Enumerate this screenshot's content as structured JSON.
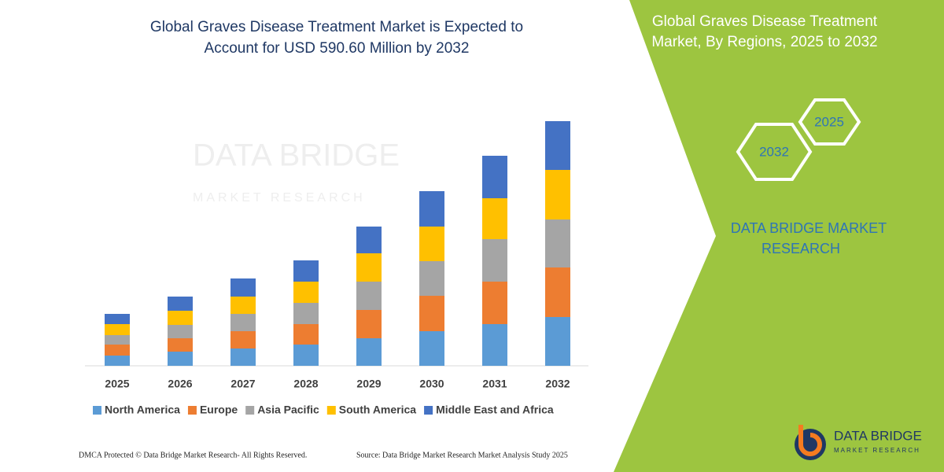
{
  "chart_data": {
    "type": "stacked_bar",
    "title_lines": [
      "Global Graves Disease Treatment Market is Expected to",
      "Account for USD 590.60 Million by 2032"
    ],
    "side_title_lines": [
      "Global Graves Disease Treatment",
      "Market, By Regions, 2025 to 2032"
    ],
    "hexagons": [
      "2025",
      "2032"
    ],
    "brand_lines": [
      "DATA BRIDGE MARKET",
      "RESEARCH"
    ],
    "watermark": [
      "DATA BRIDGE",
      "MARKET RESEARCH"
    ],
    "logo": [
      "DATA BRIDGE",
      "MARKET RESEARCH"
    ],
    "footer": "DMCA Protected © Data Bridge Market Research- All Rights Reserved.",
    "source": "Source: Data Bridge Market Research Market Analysis Study 2025",
    "categories": [
      "2025",
      "2026",
      "2027",
      "2028",
      "2029",
      "2030",
      "2031",
      "2032"
    ],
    "ylim": [
      0,
      320
    ],
    "series": [
      {
        "name": "North America",
        "color": "#5b9bd5",
        "values": [
          13,
          18,
          22,
          27,
          35,
          44,
          53,
          62
        ]
      },
      {
        "name": "Europe",
        "color": "#ed7d31",
        "values": [
          14,
          17,
          22,
          26,
          36,
          45,
          54,
          63
        ]
      },
      {
        "name": "Asia Pacific",
        "color": "#a5a5a5",
        "values": [
          12,
          17,
          22,
          27,
          36,
          44,
          54,
          61
        ]
      },
      {
        "name": "South America",
        "color": "#ffc000",
        "values": [
          14,
          18,
          22,
          27,
          36,
          44,
          52,
          63
        ]
      },
      {
        "name": "Middle East and Africa",
        "color": "#4472c4",
        "values": [
          13,
          18,
          23,
          27,
          34,
          45,
          54,
          62
        ]
      }
    ]
  }
}
